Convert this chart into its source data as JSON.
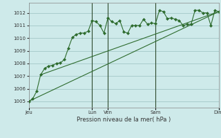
{
  "title": "",
  "xlabel": "Pression niveau de la mer( hPa )",
  "bg_color": "#ceeaea",
  "grid_color": "#a8cccc",
  "line_color": "#2d6b2d",
  "vline_color": "#2d4a2d",
  "ylim": [
    1004.5,
    1012.8
  ],
  "yticks": [
    1005,
    1006,
    1007,
    1008,
    1009,
    1010,
    1011,
    1012
  ],
  "xtick_labels": [
    "Jeu",
    "Lun",
    "Ven",
    "Sam",
    "Dim"
  ],
  "xtick_positions": [
    0,
    16,
    20,
    32,
    48
  ],
  "x_total": 48,
  "series1": {
    "x": [
      0,
      1,
      2,
      3,
      4,
      5,
      6,
      7,
      8,
      9,
      10,
      11,
      12,
      13,
      14,
      15,
      16,
      17,
      18,
      19,
      20,
      21,
      22,
      23,
      24,
      25,
      26,
      27,
      28,
      29,
      30,
      31,
      32,
      33,
      34,
      35,
      36,
      37,
      38,
      39,
      40,
      41,
      42,
      43,
      44,
      45,
      46,
      47,
      48
    ],
    "y": [
      1005.0,
      1005.2,
      1005.8,
      1007.1,
      1007.6,
      1007.8,
      1007.85,
      1008.0,
      1008.05,
      1008.3,
      1009.2,
      1010.05,
      1010.3,
      1010.4,
      1010.4,
      1010.55,
      1011.4,
      1011.3,
      1011.0,
      1010.4,
      1011.6,
      1011.3,
      1011.15,
      1011.4,
      1010.5,
      1010.4,
      1011.0,
      1011.0,
      1011.0,
      1011.5,
      1011.1,
      1011.2,
      1011.15,
      1012.2,
      1012.1,
      1011.55,
      1011.6,
      1011.5,
      1011.4,
      1011.0,
      1011.1,
      1011.1,
      1012.2,
      1012.2,
      1012.0,
      1012.0,
      1011.0,
      1012.2,
      1012.1
    ]
  },
  "series2_linear": {
    "x": [
      0,
      48
    ],
    "y": [
      1005.0,
      1012.1
    ]
  },
  "series3_linear": {
    "x": [
      3,
      48
    ],
    "y": [
      1007.1,
      1012.1
    ]
  },
  "vline_positions": [
    16,
    20,
    32
  ],
  "marker": "D",
  "marker_size": 2.2,
  "lw": 0.8
}
